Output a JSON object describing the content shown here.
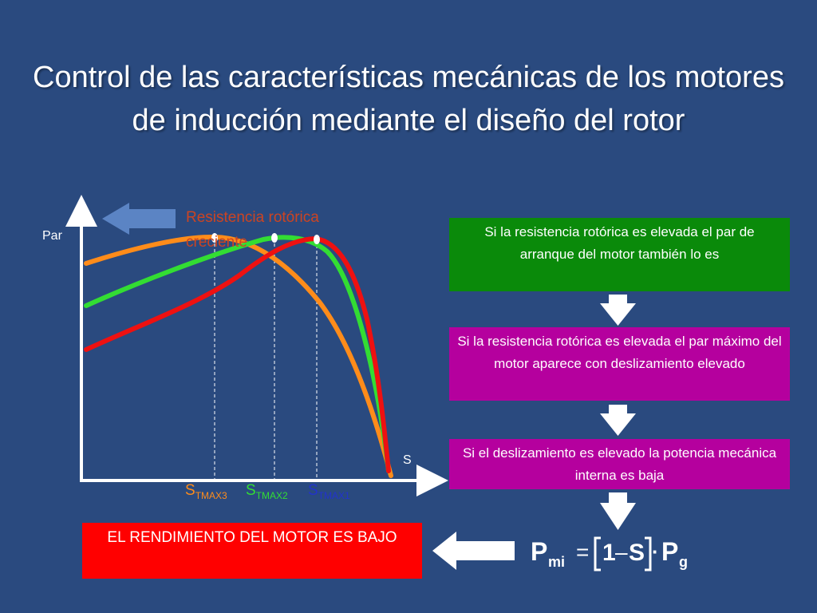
{
  "title": "Control de las características mecánicas de los motores de inducción mediante el diseño del rotor",
  "chart": {
    "y_label": "Par",
    "x_label": "S",
    "resistance_label": "Resistencia rotórica creciente",
    "markers": [
      {
        "base": "S",
        "sub": "TMAX3",
        "color": "#ff8c1a"
      },
      {
        "base": "S",
        "sub": "TMAX2",
        "color": "#33dd33"
      },
      {
        "base": "S",
        "sub": "TMAX1",
        "color": "#2233cc"
      }
    ]
  },
  "colors": {
    "background": "#2a4a7f",
    "curve_high_resistance": "#ff8c1a",
    "curve_mid_resistance": "#33dd33",
    "curve_low_resistance": "#ee1111",
    "arrow": "#5b84c4",
    "resistance_label": "#cc4422"
  },
  "boxes": {
    "green": "Si la resistencia rotórica es elevada el par de arranque del motor también lo es",
    "magenta1": "Si la resistencia rotórica es elevada el par máximo del motor aparece con deslizamiento elevado",
    "magenta2": "Si el deslizamiento es elevado la potencia mecánica interna es baja",
    "result": "EL RENDIMIENTO DEL MOTOR ES BAJO"
  },
  "formula": {
    "p": "P",
    "p_sub": "mi",
    "equals": "=",
    "one": "1",
    "minus": "–",
    "s": "S",
    "dot": "·",
    "p2": "P",
    "p2_sub": "g"
  }
}
